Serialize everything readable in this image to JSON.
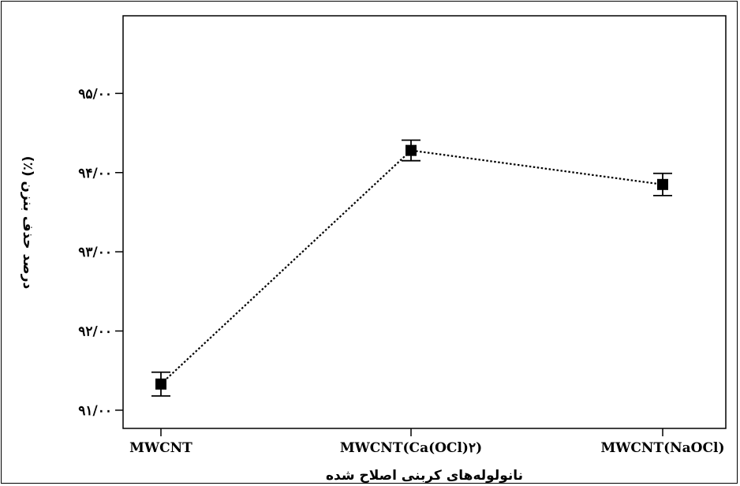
{
  "chart_data": {
    "type": "line",
    "title": "",
    "xlabel": "نانولوله‌های کربنی اصلاح شده",
    "ylabel": "درصد حذف بنزن (٪)",
    "categories": [
      "MWCNT",
      "MWCNT(Ca(OCl)۲)",
      "MWCNT(NaOCl)"
    ],
    "series": [
      {
        "values": [
          91.33,
          94.28,
          93.85
        ],
        "error": [
          0.15,
          0.13,
          0.14
        ],
        "marker": "square",
        "line_style": "dotted",
        "color": "#000000"
      }
    ],
    "yticks": [
      {
        "value": 91,
        "label": "۹۱/۰۰"
      },
      {
        "value": 92,
        "label": "۹۲/۰۰"
      },
      {
        "value": 93,
        "label": "۹۳/۰۰"
      },
      {
        "value": 94,
        "label": "۹۴/۰۰"
      },
      {
        "value": 95,
        "label": "۹۵/۰۰"
      }
    ],
    "ylim": [
      90.77,
      95.98
    ],
    "grid": false,
    "legend": "none"
  }
}
